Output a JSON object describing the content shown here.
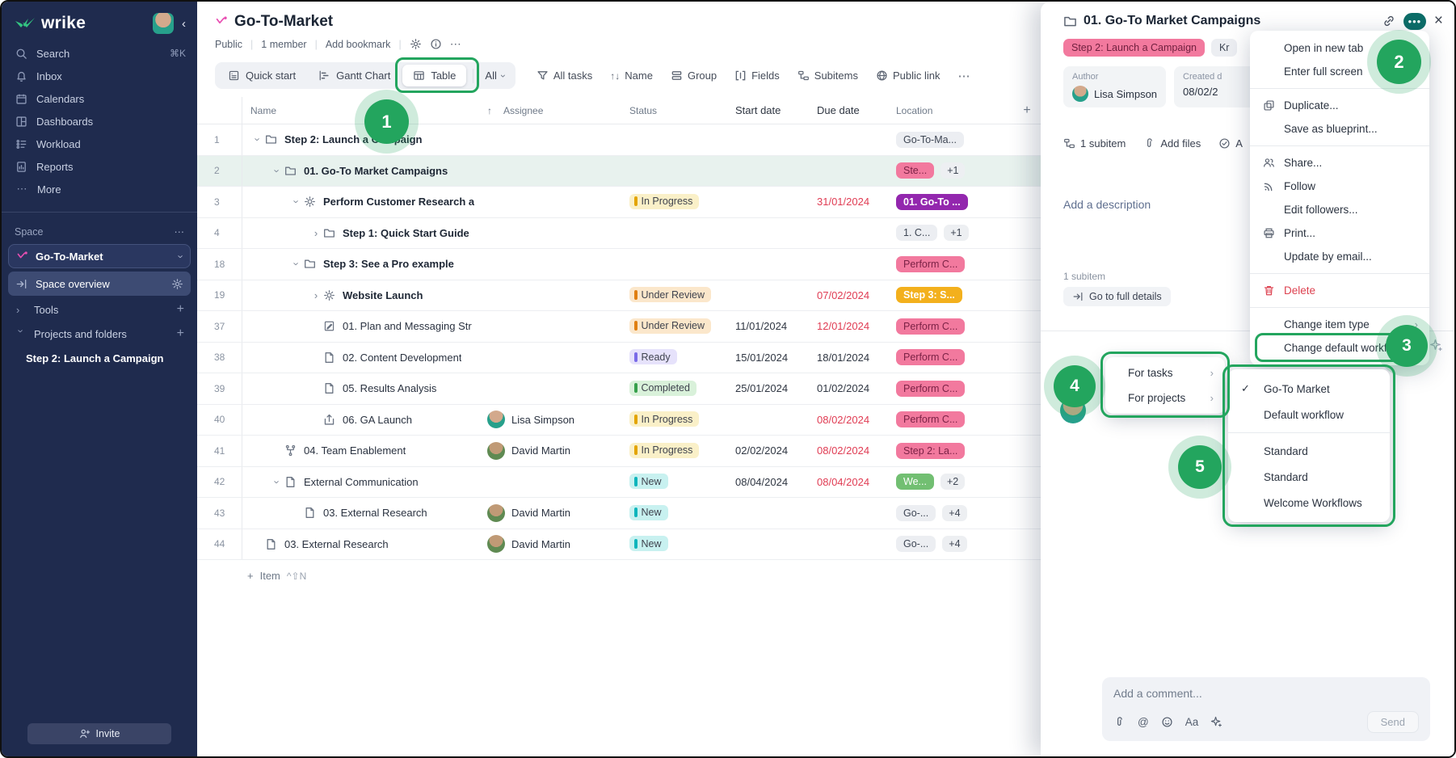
{
  "colors": {
    "accent_green": "#23A55E",
    "teal_button": "#0C6D68",
    "sidebar_bg": "#1F2B4E",
    "tag_pink": "#F2799E",
    "loc_purple": "#9327AE",
    "loc_amber": "#F3B01D",
    "loc_green": "#72BF72",
    "due_red": "#E03C53"
  },
  "sidebar": {
    "logo": "wrike",
    "collapse": "‹",
    "items": [
      {
        "icon": "search",
        "label": "Search",
        "shortcut": "⌘K"
      },
      {
        "icon": "bell",
        "label": "Inbox"
      },
      {
        "icon": "calendar",
        "label": "Calendars"
      },
      {
        "icon": "dashboard",
        "label": "Dashboards"
      },
      {
        "icon": "workload",
        "label": "Workload"
      },
      {
        "icon": "report",
        "label": "Reports"
      },
      {
        "icon": "dots",
        "label": "More"
      }
    ],
    "space_label": "Space",
    "space_name": "Go-To-Market",
    "overview": "Space overview",
    "tools": "Tools",
    "projects": "Projects and folders",
    "project_item": "Step 2: Launch a Campaign",
    "invite": "Invite"
  },
  "header": {
    "title": "Go-To-Market",
    "meta": [
      "Public",
      "1 member",
      "Add bookmark"
    ]
  },
  "toolbar": {
    "views": [
      {
        "icon": "quickstart",
        "label": "Quick start"
      },
      {
        "icon": "gantt",
        "label": "Gantt Chart"
      },
      {
        "icon": "tableview",
        "label": "Table",
        "active": true
      }
    ],
    "all_label": "All",
    "filters": [
      {
        "icon": "funnel",
        "label": "All tasks"
      },
      {
        "icon": "sort",
        "label": "Name"
      },
      {
        "icon": "group",
        "label": "Group"
      },
      {
        "icon": "fields",
        "label": "Fields"
      },
      {
        "icon": "subitems",
        "label": "Subitems"
      },
      {
        "icon": "globe",
        "label": "Public link"
      }
    ],
    "more": "⋯"
  },
  "table": {
    "columns": {
      "name": "Name",
      "assignee": "Assignee",
      "status": "Status",
      "start": "Start date",
      "due": "Due date",
      "location": "Location",
      "add": "+"
    },
    "rows": [
      {
        "num": "1",
        "indent": 0,
        "expander": "down",
        "icon": "folder",
        "name": "Step 2: Launch a Campaign",
        "bold": true,
        "location": {
          "label": "Go-To-Ma...",
          "color": "gray"
        }
      },
      {
        "num": "2",
        "indent": 1,
        "expander": "down",
        "icon": "folder",
        "name": "01. Go-To Market Campaigns",
        "bold": true,
        "selected": true,
        "location": {
          "label": "Ste...",
          "color": "pink"
        },
        "extra": "+1"
      },
      {
        "num": "3",
        "indent": 2,
        "expander": "down",
        "icon": "sun",
        "name": "Perform Customer Research a",
        "bold": true,
        "status": {
          "label": "In Progress",
          "type": "inprogress"
        },
        "due": "31/01/2024",
        "dueRed": true,
        "location": {
          "label": "01. Go-To ...",
          "color": "purple"
        }
      },
      {
        "num": "4",
        "indent": 3,
        "expander": "right",
        "icon": "folder",
        "name": "Step 1: Quick Start Guide",
        "bold": true,
        "location": {
          "label": "1. C...",
          "color": "gray"
        },
        "extra": "+1"
      },
      {
        "num": "18",
        "indent": 2,
        "expander": "down",
        "icon": "folder",
        "name": "Step 3: See a Pro example",
        "bold": true,
        "location": {
          "label": "Perform C...",
          "color": "pink"
        }
      },
      {
        "num": "19",
        "indent": 3,
        "expander": "right",
        "icon": "sun",
        "name": "Website Launch",
        "bold": true,
        "status": {
          "label": "Under Review",
          "type": "review"
        },
        "due": "07/02/2024",
        "dueRed": true,
        "location": {
          "label": "Step 3: S...",
          "color": "amber"
        }
      },
      {
        "num": "37",
        "indent": 3,
        "icon": "docedit",
        "name": "01. Plan and Messaging Str",
        "status": {
          "label": "Under Review",
          "type": "review"
        },
        "start": "11/01/2024",
        "due": "12/01/2024",
        "dueRed": true,
        "location": {
          "label": "Perform C...",
          "color": "pink"
        }
      },
      {
        "num": "38",
        "indent": 3,
        "icon": "doc",
        "name": "02. Content Development",
        "status": {
          "label": "Ready",
          "type": "ready"
        },
        "start": "15/01/2024",
        "due": "18/01/2024",
        "dueRed": false,
        "location": {
          "label": "Perform C...",
          "color": "pink"
        }
      },
      {
        "num": "39",
        "indent": 3,
        "icon": "doc",
        "name": "05. Results Analysis",
        "status": {
          "label": "Completed",
          "type": "completed"
        },
        "start": "25/01/2024",
        "due": "01/02/2024",
        "dueRed": false,
        "location": {
          "label": "Perform C...",
          "color": "pink"
        }
      },
      {
        "num": "40",
        "indent": 3,
        "icon": "launch",
        "name": "06. GA Launch",
        "assignee": {
          "name": "Lisa Simpson",
          "avatar": "lisa"
        },
        "status": {
          "label": "In Progress",
          "type": "inprogress"
        },
        "due": "08/02/2024",
        "dueRed": true,
        "location": {
          "label": "Perform C...",
          "color": "pink"
        }
      },
      {
        "num": "41",
        "indent": 1,
        "icon": "workflow",
        "name": "04. Team Enablement",
        "assignee": {
          "name": "David Martin",
          "avatar": "david"
        },
        "status": {
          "label": "In Progress",
          "type": "inprogress"
        },
        "start": "02/02/2024",
        "due": "08/02/2024",
        "dueRed": true,
        "location": {
          "label": "Step 2: La...",
          "color": "pink"
        }
      },
      {
        "num": "42",
        "indent": 1,
        "expander": "down",
        "icon": "doc",
        "name": "External Communication",
        "status": {
          "label": "New",
          "type": "new"
        },
        "start": "08/04/2024",
        "due": "08/04/2024",
        "dueRed": true,
        "location": {
          "label": "We...",
          "color": "green"
        },
        "extra": "+2"
      },
      {
        "num": "43",
        "indent": 2,
        "icon": "doc",
        "name": "03. External Research",
        "assignee": {
          "name": "David Martin",
          "avatar": "david"
        },
        "status": {
          "label": "New",
          "type": "new"
        },
        "location": {
          "label": "Go-...",
          "color": "gray"
        },
        "extra": "+4"
      },
      {
        "num": "44",
        "indent": 0,
        "icon": "doc",
        "name": "03. External Research",
        "assignee": {
          "name": "David Martin",
          "avatar": "david"
        },
        "status": {
          "label": "New",
          "type": "new"
        },
        "location": {
          "label": "Go-...",
          "color": "gray"
        },
        "extra": "+4"
      }
    ],
    "add_item": {
      "label": "Item",
      "shortcut": "^⇧N"
    }
  },
  "panel": {
    "title": "01. Go-To Market Campaigns",
    "tag": "Step 2: Launch a Campaign",
    "tag2": "Kr",
    "author_label": "Author",
    "author": "Lisa Simpson",
    "created_label": "Created d",
    "created_value": "08/02/2",
    "subitems": "1 subitem",
    "add_files": "Add files",
    "approvals": "A",
    "description_placeholder": "Add a description",
    "subitem_label": "1 subitem",
    "details_button": "Go to full details",
    "comment_placeholder": "Add a comment...",
    "format_label": "Aa",
    "send": "Send"
  },
  "menu": {
    "items": [
      {
        "label": "Open in new tab"
      },
      {
        "label": "Enter full screen"
      },
      {
        "divider": true
      },
      {
        "icon": "duplicate",
        "label": "Duplicate..."
      },
      {
        "label": "Save as blueprint..."
      },
      {
        "divider": true
      },
      {
        "icon": "share",
        "label": "Share..."
      },
      {
        "icon": "follow",
        "label": "Follow"
      },
      {
        "label": "Edit followers..."
      },
      {
        "icon": "print",
        "label": "Print..."
      },
      {
        "label": "Update by email..."
      },
      {
        "divider": true
      },
      {
        "icon": "trash",
        "label": "Delete",
        "danger": true
      },
      {
        "divider": true
      },
      {
        "label": "Change item type",
        "arrow": true
      },
      {
        "label": "Change default workflow",
        "arrow": true
      }
    ]
  },
  "submenu": {
    "items": [
      {
        "label": "For tasks",
        "arrow": true
      },
      {
        "label": "For projects",
        "arrow": true
      }
    ]
  },
  "workflows": {
    "items": [
      {
        "label": "Go-To Market",
        "checked": true
      },
      {
        "label": "Default workflow"
      },
      {
        "divider": true
      },
      {
        "label": "Standard"
      },
      {
        "label": "Standard"
      },
      {
        "label": "Welcome Workflows"
      }
    ]
  },
  "annotations": {
    "badges": [
      "1",
      "2",
      "3",
      "4",
      "5"
    ]
  }
}
